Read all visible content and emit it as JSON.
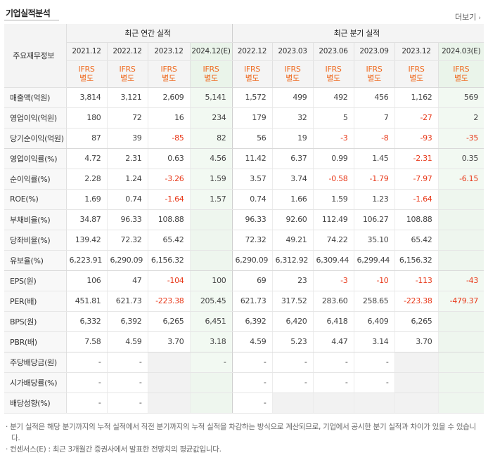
{
  "header": {
    "title": "기업실적분석",
    "more_label": "더보기"
  },
  "table": {
    "row_header_label": "주요재무정보",
    "group_annual": "최근 연간 실적",
    "group_quarter": "최근 분기 실적",
    "periods": [
      "2021.12",
      "2022.12",
      "2023.12",
      "2024.12(E)",
      "2022.12",
      "2023.03",
      "2023.06",
      "2023.09",
      "2023.12",
      "2024.03(E)"
    ],
    "ifrs_line1": "IFRS",
    "ifrs_line2": "별도",
    "rows": [
      {
        "label": "매출액(억원)",
        "values": [
          "3,814",
          "3,121",
          "2,609",
          "5,141",
          "1,572",
          "499",
          "492",
          "456",
          "1,162",
          "569"
        ]
      },
      {
        "label": "영업이익(억원)",
        "values": [
          "180",
          "72",
          "16",
          "234",
          "179",
          "32",
          "5",
          "7",
          "-27",
          "2"
        ]
      },
      {
        "label": "당기순이익(억원)",
        "values": [
          "87",
          "39",
          "-85",
          "82",
          "56",
          "19",
          "-3",
          "-8",
          "-93",
          "-35"
        ]
      },
      {
        "label": "영업이익률(%)",
        "values": [
          "4.72",
          "2.31",
          "0.63",
          "4.56",
          "11.42",
          "6.37",
          "0.99",
          "1.45",
          "-2.31",
          "0.35"
        ]
      },
      {
        "label": "순이익률(%)",
        "values": [
          "2.28",
          "1.24",
          "-3.26",
          "1.59",
          "3.57",
          "3.74",
          "-0.58",
          "-1.79",
          "-7.97",
          "-6.15"
        ]
      },
      {
        "label": "ROE(%)",
        "values": [
          "1.69",
          "0.74",
          "-1.64",
          "1.57",
          "0.74",
          "1.66",
          "1.59",
          "1.23",
          "-1.64",
          ""
        ]
      },
      {
        "label": "부채비율(%)",
        "values": [
          "34.87",
          "96.33",
          "108.88",
          "",
          "96.33",
          "92.60",
          "112.49",
          "106.27",
          "108.88",
          ""
        ]
      },
      {
        "label": "당좌비율(%)",
        "values": [
          "139.42",
          "72.32",
          "65.42",
          "",
          "72.32",
          "49.21",
          "74.22",
          "35.10",
          "65.42",
          ""
        ]
      },
      {
        "label": "유보율(%)",
        "values": [
          "6,223.91",
          "6,290.09",
          "6,156.32",
          "",
          "6,290.09",
          "6,312.92",
          "6,309.44",
          "6,299.44",
          "6,156.32",
          ""
        ]
      },
      {
        "label": "EPS(원)",
        "values": [
          "106",
          "47",
          "-104",
          "100",
          "69",
          "23",
          "-3",
          "-10",
          "-113",
          "-43"
        ]
      },
      {
        "label": "PER(배)",
        "values": [
          "451.81",
          "621.73",
          "-223.38",
          "205.45",
          "621.73",
          "317.52",
          "283.60",
          "258.65",
          "-223.38",
          "-479.37"
        ]
      },
      {
        "label": "BPS(원)",
        "values": [
          "6,332",
          "6,392",
          "6,265",
          "6,451",
          "6,392",
          "6,420",
          "6,418",
          "6,409",
          "6,265",
          ""
        ]
      },
      {
        "label": "PBR(배)",
        "values": [
          "7.58",
          "4.59",
          "3.70",
          "3.18",
          "4.59",
          "5.23",
          "4.47",
          "3.14",
          "3.70",
          ""
        ]
      },
      {
        "label": "주당배당금(원)",
        "values": [
          "-",
          "-",
          "",
          "-",
          "-",
          "-",
          "-",
          "-",
          "",
          ""
        ]
      },
      {
        "label": "시가배당률(%)",
        "values": [
          "-",
          "-",
          "",
          "",
          "-",
          "-",
          "-",
          "-",
          "",
          ""
        ]
      },
      {
        "label": "배당성향(%)",
        "values": [
          "-",
          "-",
          "",
          "",
          "-",
          "",
          "",
          "",
          "",
          ""
        ]
      }
    ]
  },
  "notes": [
    "· 분기 실적은 해당 분기까지의 누적 실적에서 직전 분기까지의 누적 실적을 차감하는 방식으로 계산되므로, 기업에서 공시한 분기 실적과 차이가 있을 수 있습니다.",
    "· 컨센서스(E) : 최근 3개월간 증권사에서 발표한 전망치의 평균값입니다."
  ],
  "colors": {
    "negative": "#e8391a",
    "ifrs": "#ef6c23",
    "estimate_bg": "#f2f9f2"
  }
}
